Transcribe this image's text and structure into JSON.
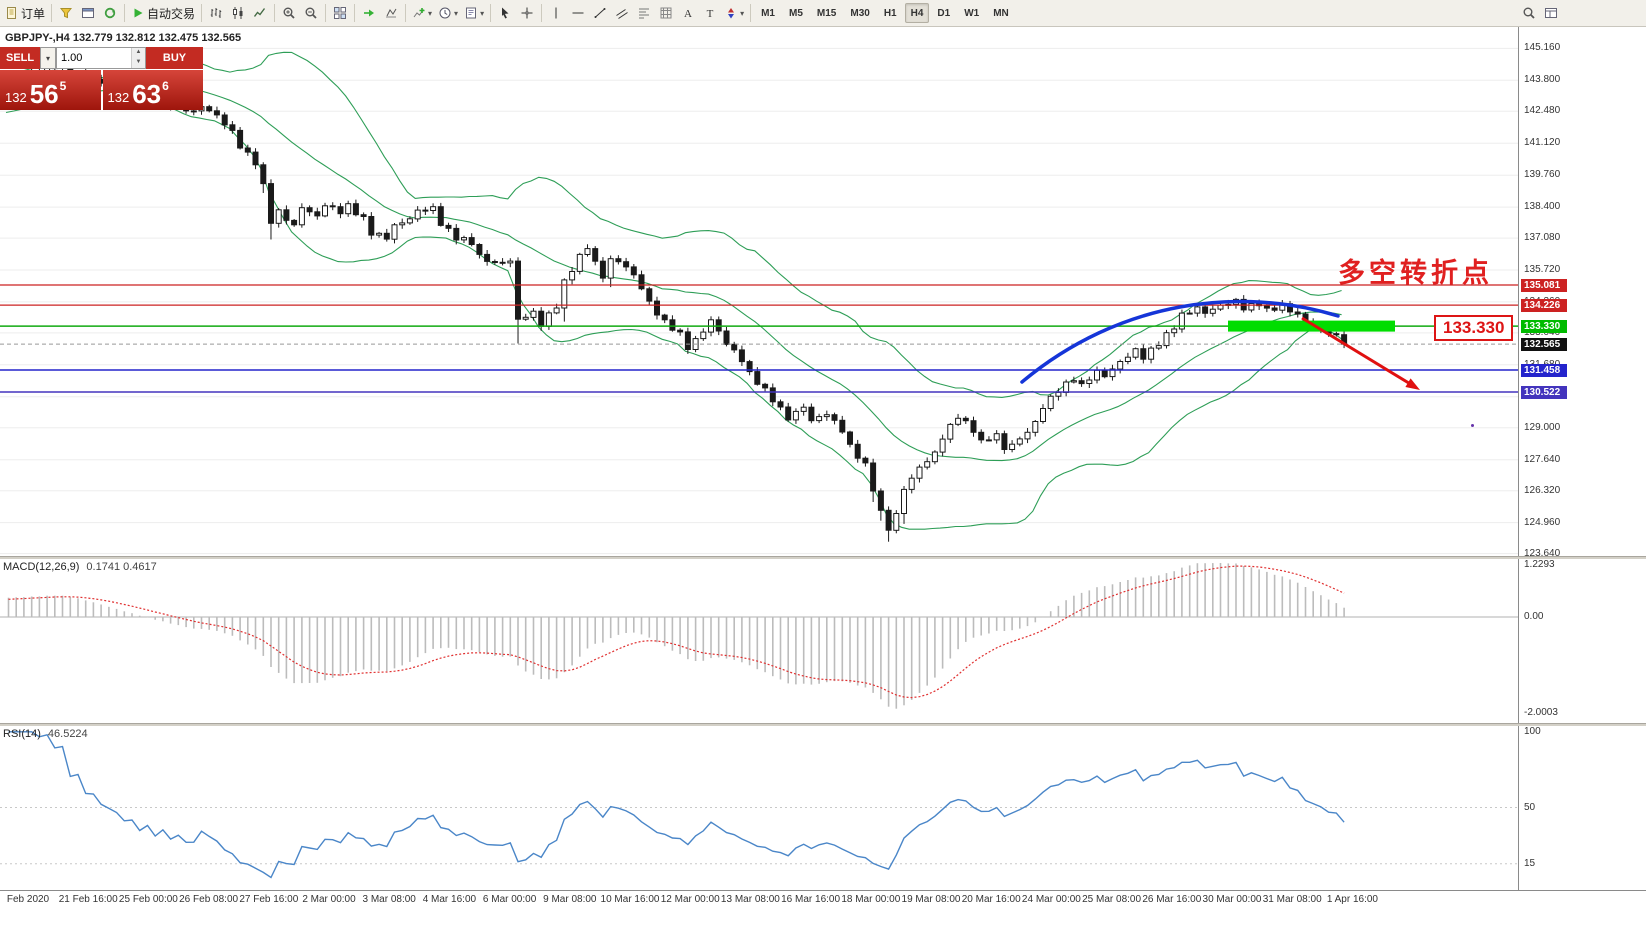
{
  "icons": {
    "caret_down": "▾",
    "tiny_up": "▲",
    "tiny_down": "▼"
  },
  "toolbar": {
    "groups": [
      {
        "items": [
          {
            "name": "new-order-button",
            "icon": "order-icon",
            "label": "订单"
          }
        ]
      },
      {
        "items": [
          {
            "name": "market-watch-button",
            "icon": "filter-icon"
          },
          {
            "name": "data-window-button",
            "icon": "window-icon"
          },
          {
            "name": "navigator-button",
            "icon": "refresh-icon"
          }
        ]
      },
      {
        "items": [
          {
            "name": "autotrading-button",
            "icon": "play-icon",
            "label": "自动交易"
          }
        ]
      },
      {
        "items": [
          {
            "name": "bar-chart-button",
            "icon": "bars-icon"
          },
          {
            "name": "candlestick-button",
            "icon": "candles-icon"
          },
          {
            "name": "line-chart-button",
            "icon": "linechart-icon"
          }
        ]
      },
      {
        "items": [
          {
            "name": "zoom-in-button",
            "icon": "zoom-in-icon"
          },
          {
            "name": "zoom-out-button",
            "icon": "zoom-out-icon"
          }
        ]
      },
      {
        "items": [
          {
            "name": "tile-windows-button",
            "icon": "tile-icon"
          }
        ]
      },
      {
        "items": [
          {
            "name": "chart-shift-button",
            "icon": "shift-icon"
          },
          {
            "name": "auto-scroll-button",
            "icon": "scroll-icon"
          }
        ]
      },
      {
        "items": [
          {
            "name": "indicators-button",
            "icon": "indicator-icon",
            "caret": true
          },
          {
            "name": "periods-button",
            "icon": "clock-icon",
            "caret": true
          },
          {
            "name": "templates-button",
            "icon": "template-icon",
            "caret": true
          }
        ]
      },
      {
        "items": [
          {
            "name": "cursor-button",
            "icon": "cursor-icon"
          },
          {
            "name": "crosshair-button",
            "icon": "crosshair-icon"
          }
        ]
      },
      {
        "items": [
          {
            "name": "vertical-line-button",
            "icon": "vline-icon"
          },
          {
            "name": "horizontal-line-button",
            "icon": "hline-icon"
          },
          {
            "name": "trendline-button",
            "icon": "trendline-icon"
          },
          {
            "name": "channel-button",
            "icon": "channel-icon"
          },
          {
            "name": "fibonacci-button",
            "icon": "fibo-icon"
          },
          {
            "name": "shapes-button",
            "icon": "grid-icon"
          },
          {
            "name": "text-button",
            "icon": "text-icon"
          },
          {
            "name": "label-button",
            "icon": "label-icon"
          },
          {
            "name": "arrows-button",
            "icon": "arrow-icon",
            "caret": true
          }
        ]
      }
    ],
    "timeframes": [
      {
        "label": "M1"
      },
      {
        "label": "M5"
      },
      {
        "label": "M15"
      },
      {
        "label": "M30"
      },
      {
        "label": "H1"
      },
      {
        "label": "H4",
        "active": true
      },
      {
        "label": "D1"
      },
      {
        "label": "W1"
      },
      {
        "label": "MN"
      }
    ],
    "right_items": [
      {
        "name": "search-button",
        "icon": "search-icon"
      },
      {
        "name": "layout-button",
        "icon": "layout-icon"
      }
    ]
  },
  "chart_title": "GBPJPY-,H4 132.779 132.812 132.475 132.565",
  "quote_panel": {
    "sell_label": "SELL",
    "buy_label": "BUY",
    "volume": "1.00",
    "sell_price": {
      "prefix": "132",
      "big": "56",
      "sup": "5"
    },
    "buy_price": {
      "prefix": "132",
      "big": "63",
      "sup": "6"
    }
  },
  "chart_data": {
    "type": "candlestick",
    "symbol": "GBPJPY-",
    "timeframe": "H4",
    "ohlc_display": "132.779 132.812 132.475 132.565",
    "y_ticks": [
      "145.160",
      "143.800",
      "142.480",
      "141.120",
      "139.760",
      "138.400",
      "137.080",
      "135.720",
      "134.360",
      "133.040",
      "131.680",
      "130.320",
      "129.000",
      "127.640",
      "126.320",
      "124.960",
      "123.640"
    ],
    "x_labels": [
      "Feb 2020",
      "21 Feb 16:00",
      "25 Feb 00:00",
      "26 Feb 08:00",
      "27 Feb 16:00",
      "2 Mar 00:00",
      "3 Mar 08:00",
      "4 Mar 16:00",
      "6 Mar 00:00",
      "9 Mar 08:00",
      "10 Mar 16:00",
      "12 Mar 00:00",
      "13 Mar 08:00",
      "16 Mar 16:00",
      "18 Mar 00:00",
      "19 Mar 08:00",
      "20 Mar 16:00",
      "24 Mar 00:00",
      "25 Mar 08:00",
      "26 Mar 16:00",
      "30 Mar 00:00",
      "31 Mar 08:00",
      "1 Apr 16:00"
    ],
    "visible_candles": 174,
    "warmup": {
      "count": 30,
      "start": 141.8,
      "step": 0.07
    },
    "price_waypoints": [
      [
        0,
        143.9
      ],
      [
        6,
        144.4
      ],
      [
        11,
        143.8
      ],
      [
        16,
        143.3
      ],
      [
        20,
        142.9
      ],
      [
        24,
        142.45
      ],
      [
        25,
        142.7
      ],
      [
        27,
        142.3
      ],
      [
        29,
        141.6
      ],
      [
        30,
        141.0
      ],
      [
        32,
        140.3
      ],
      [
        33,
        139.3
      ],
      [
        34,
        137.8
      ],
      [
        35,
        138.2
      ],
      [
        37,
        137.6
      ],
      [
        38,
        138.4
      ],
      [
        40,
        138.0
      ],
      [
        41,
        138.5
      ],
      [
        43,
        138.2
      ],
      [
        44,
        138.45
      ],
      [
        46,
        137.9
      ],
      [
        47,
        137.3
      ],
      [
        49,
        137.1
      ],
      [
        50,
        137.6
      ],
      [
        52,
        137.9
      ],
      [
        53,
        138.25
      ],
      [
        55,
        138.35
      ],
      [
        56,
        137.7
      ],
      [
        58,
        137.1
      ],
      [
        60,
        136.9
      ],
      [
        61,
        136.3
      ],
      [
        63,
        136.0
      ],
      [
        65,
        136.1
      ],
      [
        66,
        133.6
      ],
      [
        68,
        133.9
      ],
      [
        69,
        133.4
      ],
      [
        71,
        134.2
      ],
      [
        72,
        135.2
      ],
      [
        74,
        136.3
      ],
      [
        75,
        136.7
      ],
      [
        77,
        135.4
      ],
      [
        78,
        136.2
      ],
      [
        80,
        135.9
      ],
      [
        82,
        135.0
      ],
      [
        83,
        134.3
      ],
      [
        85,
        133.5
      ],
      [
        87,
        133.0
      ],
      [
        88,
        132.4
      ],
      [
        90,
        133.1
      ],
      [
        91,
        133.6
      ],
      [
        93,
        132.6
      ],
      [
        95,
        131.9
      ],
      [
        96,
        131.3
      ],
      [
        98,
        130.6
      ],
      [
        100,
        129.8
      ],
      [
        101,
        129.4
      ],
      [
        103,
        129.9
      ],
      [
        104,
        129.3
      ],
      [
        106,
        129.6
      ],
      [
        108,
        128.9
      ],
      [
        109,
        128.2
      ],
      [
        111,
        127.4
      ],
      [
        113,
        125.4
      ],
      [
        114,
        124.7
      ],
      [
        115,
        125.3
      ],
      [
        116,
        126.4
      ],
      [
        118,
        127.3
      ],
      [
        120,
        127.9
      ],
      [
        121,
        128.6
      ],
      [
        123,
        129.5
      ],
      [
        125,
        128.9
      ],
      [
        126,
        128.4
      ],
      [
        128,
        128.7
      ],
      [
        129,
        128.1
      ],
      [
        131,
        128.5
      ],
      [
        133,
        129.2
      ],
      [
        134,
        129.9
      ],
      [
        136,
        130.6
      ],
      [
        138,
        131.1
      ],
      [
        139,
        130.8
      ],
      [
        141,
        131.4
      ],
      [
        142,
        131.2
      ],
      [
        144,
        131.8
      ],
      [
        146,
        132.3
      ],
      [
        147,
        132.0
      ],
      [
        149,
        132.6
      ],
      [
        151,
        133.3
      ],
      [
        152,
        133.8
      ],
      [
        154,
        134.1
      ],
      [
        155,
        133.9
      ],
      [
        157,
        134.2
      ],
      [
        159,
        134.4
      ],
      [
        160,
        134.1
      ],
      [
        162,
        134.3
      ],
      [
        163,
        134.0
      ],
      [
        165,
        134.2
      ],
      [
        167,
        133.8
      ],
      [
        168,
        133.5
      ],
      [
        170,
        133.2
      ],
      [
        172,
        132.9
      ],
      [
        173,
        132.565
      ]
    ],
    "overlays": {
      "bollinger": {
        "period": 20,
        "deviation": 2,
        "color": "#2e9e57"
      }
    },
    "key_levels": [
      {
        "label": "135.081",
        "price": 135.081,
        "line": "#cc2222",
        "badge": "#cc2222",
        "width": 1.2
      },
      {
        "label": "134.226",
        "price": 134.226,
        "line": "#cc2222",
        "badge": "#cc2222",
        "width": 1.2
      },
      {
        "label": "133.330",
        "price": 133.33,
        "line": "#11aa11",
        "badge": "#00bb00",
        "width": 1.5
      },
      {
        "label": "132.565",
        "price": 132.565,
        "line": "#999999",
        "badge": "#111111",
        "width": 1,
        "dashed": true,
        "role": "bid"
      },
      {
        "label": "131.458",
        "price": 131.458,
        "line": "#2424cc",
        "badge": "#2424cc",
        "width": 1.6
      },
      {
        "label": "130.522",
        "price": 130.522,
        "line": "#4334bd",
        "badge": "#4334bd",
        "width": 1.6
      }
    ]
  },
  "annotations": {
    "turning_point_text": "多空转折点",
    "turning_point_color": "#e02020",
    "price_callout": "133.330",
    "callout_color": "#dd1515",
    "green_zone": {
      "price": 133.33,
      "color": "#00dd00"
    },
    "arc_color": "#1535d8",
    "arrow_color": "#e01010"
  },
  "macd_panel": {
    "label": "MACD(12,26,9)",
    "values": "0.1741 0.4617",
    "axis": [
      "1.2293",
      "0.00",
      "-2.0003"
    ],
    "histogram_color": "#bcbcbc",
    "signal_color": "#e03030",
    "params": {
      "fast": 12,
      "slow": 26,
      "signal": 9
    }
  },
  "rsi_panel": {
    "label": "RSI(14)",
    "value": "46.5224",
    "axis": [
      "100",
      "50",
      "15"
    ],
    "line_color": "#4a86c8",
    "period": 14
  }
}
